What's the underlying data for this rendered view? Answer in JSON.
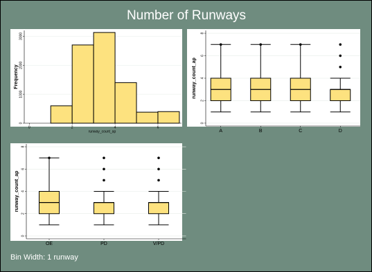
{
  "title": "Number of Runways",
  "note": "Bin Width: 1 runway",
  "chart_data": [
    {
      "type": "histogram",
      "xlabel": "runway_count_ap",
      "ylabel": "Frequency",
      "bins": [
        1,
        2,
        3,
        4,
        5,
        6,
        7
      ],
      "values": [
        600,
        2700,
        3130,
        1400,
        380,
        400
      ],
      "color": "#fde27f",
      "xlim": [
        -0.3,
        7.1
      ],
      "xticks": [
        0,
        2,
        4,
        6
      ],
      "ylim": [
        0,
        3200
      ],
      "yticks": [
        0,
        1000,
        2000,
        3000
      ],
      "grid": true
    },
    {
      "type": "box",
      "ylabel": "runway_count_ap",
      "color": "#fde27f",
      "categories": [
        "A",
        "B",
        "C",
        "D"
      ],
      "stats": [
        {
          "min": 1,
          "q1": 2,
          "median": 3,
          "q3": 4,
          "max": 7,
          "outliers": [
            7
          ]
        },
        {
          "min": 1,
          "q1": 2,
          "median": 3,
          "q3": 4,
          "max": 7,
          "outliers": [
            7
          ]
        },
        {
          "min": 1,
          "q1": 2,
          "median": 3,
          "q3": 4,
          "max": 7,
          "outliers": [
            7
          ]
        },
        {
          "min": 1,
          "q1": 2,
          "median": 3,
          "q3": 3,
          "max": 4,
          "outliers": [
            5,
            6,
            7
          ]
        }
      ],
      "ylim": [
        -0.25,
        8.25
      ],
      "yticks": [
        0,
        2,
        4,
        6,
        8
      ],
      "grid": true
    },
    {
      "type": "box",
      "ylabel": "runway_count_ap",
      "color": "#fde27f",
      "categories": [
        "OE",
        "PD",
        "V/PD"
      ],
      "stats": [
        {
          "min": 1,
          "q1": 2,
          "median": 3,
          "q3": 4,
          "max": 7,
          "outliers": [
            7
          ]
        },
        {
          "min": 1,
          "q1": 2,
          "median": 3,
          "q3": 3,
          "max": 4,
          "outliers": [
            5,
            6,
            7
          ]
        },
        {
          "min": 1,
          "q1": 2,
          "median": 3,
          "q3": 3,
          "max": 4,
          "outliers": [
            5,
            6,
            7
          ]
        }
      ],
      "ylim": [
        -0.25,
        8.25
      ],
      "yticks": [
        0,
        2,
        4,
        6,
        8
      ],
      "grid": true
    }
  ]
}
